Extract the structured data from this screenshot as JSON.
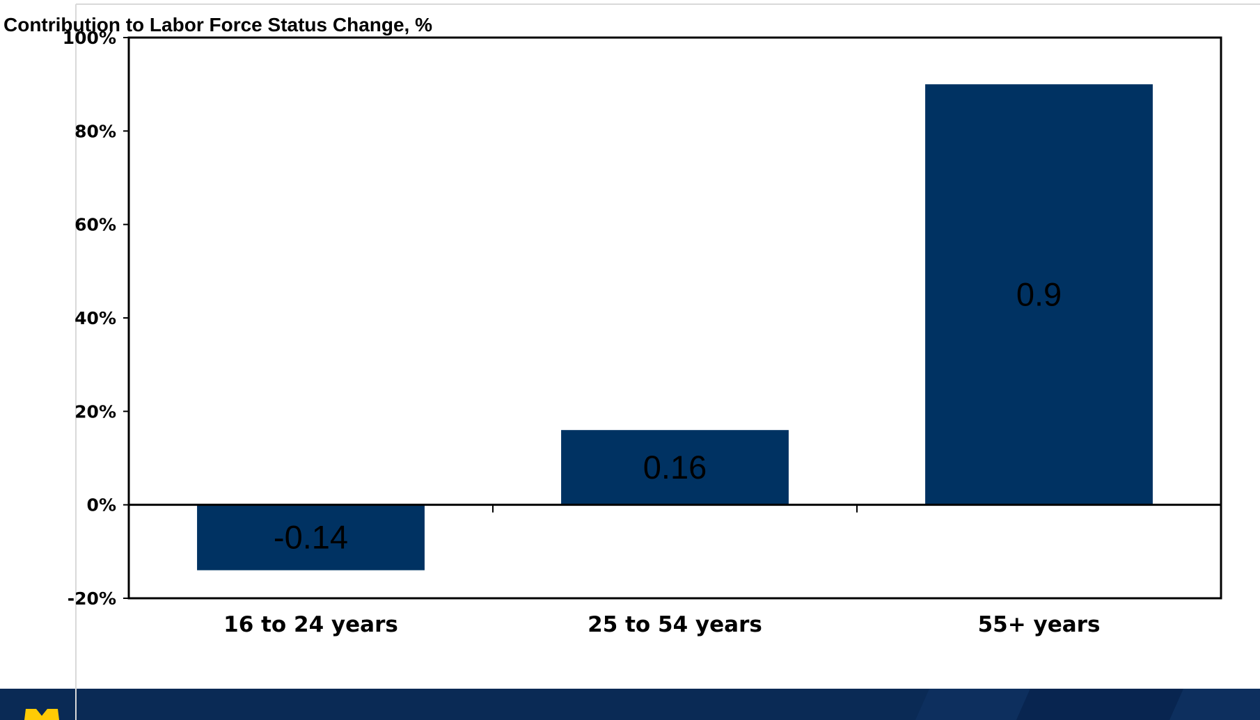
{
  "chart_data": {
    "type": "bar",
    "title": "Contribution to Labor Force Status Change, %",
    "xlabel": "",
    "ylabel": "",
    "categories": [
      "16 to 24 years",
      "25 to 54 years",
      "55+ years"
    ],
    "values": [
      -0.14,
      0.16,
      0.9
    ],
    "data_labels": [
      "-0.14",
      "0.16",
      "0.9"
    ],
    "ylim": [
      -0.2,
      1.0
    ],
    "yticks": [
      -0.2,
      0,
      0.2,
      0.4,
      0.6,
      0.8,
      1.0
    ],
    "ytick_labels": [
      "-20%",
      "0%",
      "20%",
      "40%",
      "60%",
      "80%",
      "100%"
    ],
    "grid": false,
    "legend": "none",
    "bar_color": "#003262"
  },
  "footer": {
    "band_color": "#0a2a55",
    "logo_mark_color": "#ffcb05"
  }
}
